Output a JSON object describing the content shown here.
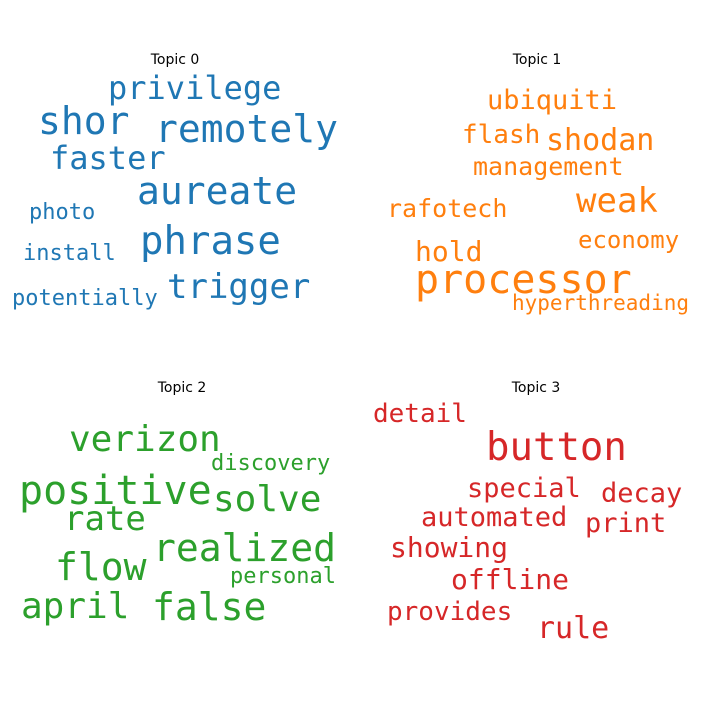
{
  "chart_data": {
    "type": "wordcloud",
    "topics": [
      {
        "title": "Topic 0",
        "color": "#1f77b4",
        "words": [
          "privilege",
          "shor",
          "remotely",
          "faster",
          "aureate",
          "photo",
          "phrase",
          "install",
          "trigger",
          "potentially"
        ]
      },
      {
        "title": "Topic 1",
        "color": "#ff7f0e",
        "words": [
          "ubiquiti",
          "flash",
          "shodan",
          "management",
          "rafotech",
          "weak",
          "economy",
          "hold",
          "processor",
          "hyperthreading"
        ]
      },
      {
        "title": "Topic 2",
        "color": "#2ca02c",
        "words": [
          "verizon",
          "discovery",
          "positive",
          "solve",
          "rate",
          "realized",
          "flow",
          "personal",
          "april",
          "false"
        ]
      },
      {
        "title": "Topic 3",
        "color": "#d62728",
        "words": [
          "detail",
          "button",
          "special",
          "decay",
          "automated",
          "print",
          "showing",
          "offline",
          "provides",
          "rule"
        ]
      }
    ]
  }
}
